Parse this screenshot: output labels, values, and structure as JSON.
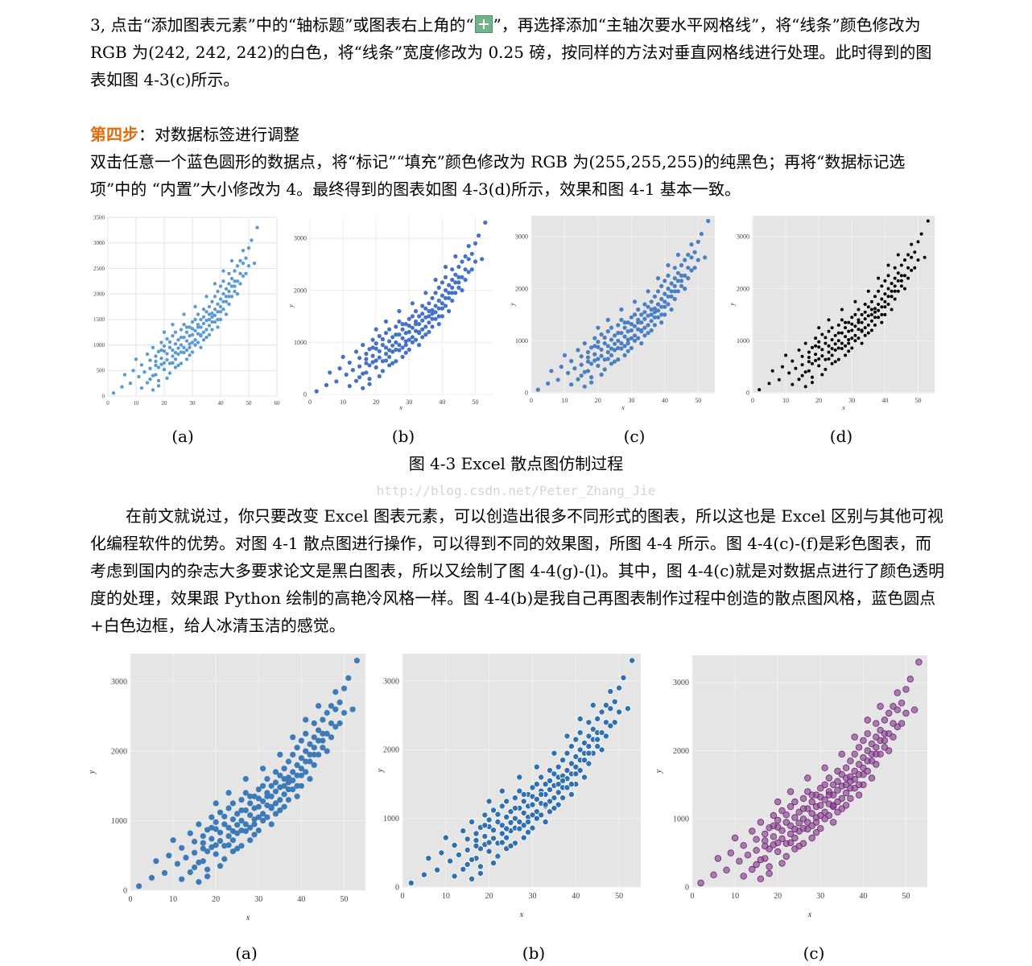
{
  "paragraphs": {
    "p1_before_icon": "3, 点击“添加图表元素”中的“轴标题”或图表右上角的“",
    "p1_after_icon": "”，再选择添加“主轴次要水平网格线”，将“线条”颜色修改为 RGB 为(242, 242, 242)的白色，将“线条”宽度修改为 0.25 磅，按同样的方法对垂直网格线进行处理。此时得到的图表如图 4-3(c)所示。",
    "plus_icon": "chart-elements-plus-icon",
    "step4_heading": "第四步",
    "step4_rest": "：对数据标签进行调整",
    "p2": "双击任意一个蓝色圆形的数据点，将“标记”“填充”颜色修改为 RGB 为(255,255,255)的纯黑色；再将“数据标记选项”中的 “内置”大小修改为 4。最终得到的图表如图 4-3(d)所示，效果和图 4-1 基本一致。",
    "p3": "在前文就说过，你只要改变 Excel 图表元素，可以创造出很多不同形式的图表，所以这也是 Excel 区别与其他可视化编程软件的优势。对图 4-1 散点图进行操作，可以得到不同的效果图，所图 4-4 所示。图 4-4(c)-(f)是彩色图表，而考虑到国内的杂志大多要求论文是黑白图表，所以又绘制了图 4-4(g)-(l)。其中，图 4-4(c)就是对数据点进行了颜色透明度的处理，效果跟 Python 绘制的高艳冷风格一样。图 4-4(b)是我自己再图表制作过程中创造的散点图风格，蓝色圆点+白色边框，给人冰清玉洁的感觉。"
  },
  "colors": {
    "accent_heading": "#e46c0a"
  },
  "figure_caption": "图 4-3 Excel 散点图仿制过程",
  "watermark": "http://blog.csdn.net/Peter_Zhang_Jie",
  "panel_labels_top": [
    "(a)",
    "(b)",
    "(c)",
    "(d)"
  ],
  "panel_labels_bottom": [
    "(a)",
    "(b)",
    "(c)"
  ],
  "chart_data": [
    {
      "id": "fig4-3a",
      "type": "scatter",
      "bg": "#ffffff",
      "grid": true,
      "grid_color": "#e3e3e3",
      "point_color": "#5b9bd5",
      "point_stroke": "none",
      "point_opacity": 1,
      "xlim": [
        0,
        60
      ],
      "ylim": [
        0,
        3500
      ],
      "xticks": [
        "0",
        "10",
        "20",
        "30",
        "40",
        "50",
        "60"
      ],
      "yticks": [
        "0",
        "500",
        "1000",
        "1500",
        "2000",
        "2500",
        "3000",
        "3500"
      ],
      "xlabel": "",
      "ylabel": ""
    },
    {
      "id": "fig4-3b",
      "type": "scatter",
      "bg": "#ffffff",
      "grid": true,
      "grid_color": "#ececec",
      "point_color": "#4472c4",
      "point_stroke": "none",
      "point_opacity": 1,
      "xlim": [
        0,
        55
      ],
      "ylim": [
        0,
        3400
      ],
      "xticks": [
        "0",
        "10",
        "20",
        "30",
        "40",
        "50"
      ],
      "yticks": [
        "0",
        "1000",
        "2000",
        "3000"
      ],
      "xlabel": "x",
      "ylabel": "y"
    },
    {
      "id": "fig4-3c",
      "type": "scatter",
      "bg": "#e5e5e5",
      "grid": true,
      "grid_color": "#f2f2f2",
      "point_color": "#4a7fc1",
      "point_stroke": "none",
      "point_opacity": 1,
      "xlim": [
        0,
        55
      ],
      "ylim": [
        0,
        3400
      ],
      "xticks": [
        "0",
        "10",
        "20",
        "30",
        "40",
        "50"
      ],
      "yticks": [
        "0",
        "1000",
        "2000",
        "3000"
      ],
      "xlabel": "x",
      "ylabel": "y"
    },
    {
      "id": "fig4-3d",
      "type": "scatter",
      "bg": "#e5e5e5",
      "grid": true,
      "grid_color": "#f2f2f2",
      "point_color": "#000000",
      "point_stroke": "none",
      "point_opacity": 1,
      "xlim": [
        0,
        55
      ],
      "ylim": [
        0,
        3400
      ],
      "xticks": [
        "0",
        "10",
        "20",
        "30",
        "40",
        "50"
      ],
      "yticks": [
        "0",
        "1000",
        "2000",
        "3000"
      ],
      "xlabel": "x",
      "ylabel": "y"
    },
    {
      "id": "fig4-4a",
      "type": "scatter",
      "bg": "#e5e5e5",
      "grid": true,
      "grid_color": "#f2f2f2",
      "point_color": "#3d7ab8",
      "point_stroke": "none",
      "point_opacity": 1,
      "xlim": [
        0,
        55
      ],
      "ylim": [
        0,
        3400
      ],
      "xticks": [
        "0",
        "10",
        "20",
        "30",
        "40",
        "50"
      ],
      "yticks": [
        "0",
        "1000",
        "2000",
        "3000"
      ],
      "xlabel": "x",
      "ylabel": "y"
    },
    {
      "id": "fig4-4b",
      "type": "scatter",
      "bg": "#e5e5e5",
      "grid": true,
      "grid_color": "#f2f2f2",
      "point_color": "#2f70b0",
      "point_stroke": "#ffffff",
      "point_opacity": 1,
      "xlim": [
        0,
        55
      ],
      "ylim": [
        0,
        3400
      ],
      "xticks": [
        "0",
        "10",
        "20",
        "30",
        "40",
        "50"
      ],
      "yticks": [
        "0",
        "1000",
        "2000",
        "3000"
      ],
      "xlabel": "x",
      "ylabel": "y"
    },
    {
      "id": "fig4-4c",
      "type": "scatter",
      "bg": "#e5e5e5",
      "grid": true,
      "grid_color": "#f2f2f2",
      "point_color": "#8b3f91",
      "point_stroke": "#6a2670",
      "point_opacity": 0.65,
      "xlim": [
        0,
        55
      ],
      "ylim": [
        0,
        3400
      ],
      "xticks": [
        "0",
        "10",
        "20",
        "30",
        "40",
        "50"
      ],
      "yticks": [
        "0",
        "1000",
        "2000",
        "3000"
      ],
      "xlabel": "x",
      "ylabel": "y"
    }
  ],
  "scatter_points": [
    [
      2,
      60
    ],
    [
      5,
      180
    ],
    [
      6,
      420
    ],
    [
      8,
      250
    ],
    [
      9,
      500
    ],
    [
      10,
      720
    ],
    [
      11,
      380
    ],
    [
      12,
      160
    ],
    [
      12,
      610
    ],
    [
      13,
      470
    ],
    [
      14,
      260
    ],
    [
      14,
      820
    ],
    [
      15,
      540
    ],
    [
      15,
      330
    ],
    [
      16,
      950
    ],
    [
      16,
      120
    ],
    [
      17,
      680
    ],
    [
      17,
      420
    ],
    [
      17,
      780
    ],
    [
      18,
      560
    ],
    [
      18,
      870
    ],
    [
      18,
      300
    ],
    [
      19,
      740
    ],
    [
      19,
      1050
    ],
    [
      19,
      620
    ],
    [
      20,
      880
    ],
    [
      20,
      520
    ],
    [
      20,
      980
    ],
    [
      21,
      710
    ],
    [
      21,
      1120
    ],
    [
      21,
      830
    ],
    [
      22,
      640
    ],
    [
      22,
      950
    ],
    [
      22,
      1060
    ],
    [
      23,
      780
    ],
    [
      23,
      1180
    ],
    [
      23,
      900
    ],
    [
      24,
      1020
    ],
    [
      24,
      720
    ],
    [
      24,
      1250
    ],
    [
      25,
      940
    ],
    [
      25,
      1100
    ],
    [
      25,
      820
    ],
    [
      26,
      1300
    ],
    [
      26,
      1000
    ],
    [
      26,
      860
    ],
    [
      27,
      1150
    ],
    [
      27,
      950
    ],
    [
      27,
      1400
    ],
    [
      28,
      1080
    ],
    [
      28,
      1250
    ],
    [
      28,
      900
    ],
    [
      29,
      1350
    ],
    [
      29,
      1180
    ],
    [
      29,
      1020
    ],
    [
      30,
      1450
    ],
    [
      30,
      1200
    ],
    [
      30,
      1320
    ],
    [
      31,
      1100
    ],
    [
      31,
      1500
    ],
    [
      31,
      1280
    ],
    [
      32,
      1400
    ],
    [
      32,
      1220
    ],
    [
      32,
      1600
    ],
    [
      33,
      1350
    ],
    [
      33,
      1500
    ],
    [
      33,
      1180
    ],
    [
      34,
      1550
    ],
    [
      34,
      1420
    ],
    [
      34,
      1700
    ],
    [
      35,
      1480
    ],
    [
      35,
      1650
    ],
    [
      35,
      1300
    ],
    [
      36,
      1600
    ],
    [
      36,
      1750
    ],
    [
      36,
      1500
    ],
    [
      37,
      1850
    ],
    [
      37,
      1620
    ],
    [
      37,
      1450
    ],
    [
      38,
      1700
    ],
    [
      38,
      1950
    ],
    [
      38,
      1580
    ],
    [
      39,
      1800
    ],
    [
      39,
      2050
    ],
    [
      39,
      1650
    ],
    [
      40,
      1900
    ],
    [
      40,
      2150
    ],
    [
      40,
      1750
    ],
    [
      41,
      2000
    ],
    [
      41,
      1850
    ],
    [
      41,
      2250
    ],
    [
      42,
      2100
    ],
    [
      42,
      1950
    ],
    [
      43,
      2200
    ],
    [
      43,
      2400
    ],
    [
      43,
      2050
    ],
    [
      44,
      2300
    ],
    [
      44,
      2150
    ],
    [
      45,
      2450
    ],
    [
      45,
      2250
    ],
    [
      46,
      2000
    ],
    [
      46,
      2550
    ],
    [
      47,
      2650
    ],
    [
      47,
      2400
    ],
    [
      48,
      2850
    ],
    [
      48,
      2600
    ],
    [
      49,
      2700
    ],
    [
      50,
      2550
    ],
    [
      50,
      2900
    ],
    [
      51,
      3050
    ],
    [
      52,
      2600
    ],
    [
      53,
      3300
    ],
    [
      18,
      200
    ],
    [
      22,
      450
    ],
    [
      24,
      560
    ],
    [
      26,
      640
    ],
    [
      28,
      720
    ],
    [
      30,
      860
    ],
    [
      33,
      950
    ],
    [
      36,
      1200
    ],
    [
      39,
      1350
    ],
    [
      42,
      1600
    ],
    [
      20,
      1250
    ],
    [
      23,
      1400
    ],
    [
      27,
      1600
    ],
    [
      31,
      1750
    ],
    [
      35,
      1950
    ],
    [
      38,
      2200
    ],
    [
      41,
      2450
    ],
    [
      44,
      2650
    ],
    [
      46,
      2250
    ],
    [
      25,
      600
    ],
    [
      29,
      800
    ],
    [
      32,
      1050
    ],
    [
      34,
      1100
    ],
    [
      37,
      1300
    ],
    [
      40,
      1500
    ],
    [
      43,
      1800
    ],
    [
      45,
      2050
    ],
    [
      15,
      700
    ],
    [
      16,
      400
    ],
    [
      21,
      350
    ],
    [
      19,
      900
    ],
    [
      24,
      850
    ],
    [
      26,
      1150
    ],
    [
      28,
      1350
    ],
    [
      30,
      1050
    ],
    [
      32,
      1350
    ],
    [
      34,
      1250
    ],
    [
      36,
      1380
    ],
    [
      38,
      1450
    ],
    [
      40,
      1650
    ],
    [
      42,
      1850
    ],
    [
      44,
      1950
    ],
    [
      47,
      2200
    ],
    [
      49,
      2400
    ],
    [
      17,
      600
    ],
    [
      20,
      650
    ],
    [
      23,
      650
    ],
    [
      27,
      850
    ],
    [
      29,
      950
    ],
    [
      31,
      1000
    ],
    [
      33,
      1200
    ],
    [
      35,
      1150
    ],
    [
      37,
      1550
    ],
    [
      39,
      1500
    ],
    [
      41,
      1700
    ],
    [
      43,
      1950
    ],
    [
      45,
      2150
    ],
    [
      48,
      2350
    ]
  ]
}
